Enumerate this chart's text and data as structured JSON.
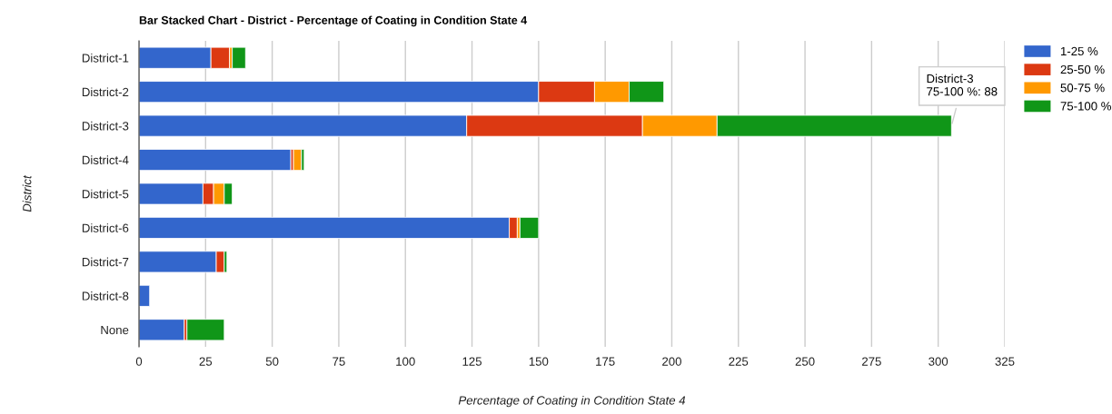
{
  "chart_data": {
    "type": "bar",
    "orientation": "horizontal",
    "stacked": true,
    "title": "Bar Stacked Chart - District - Percentage of Coating in Condition State 4",
    "xlabel": "Percentage of Coating in Condition State 4",
    "ylabel": "District",
    "categories": [
      "District-1",
      "District-2",
      "District-3",
      "District-4",
      "District-5",
      "District-6",
      "District-7",
      "District-8",
      "None"
    ],
    "series": [
      {
        "name": "1-25 %",
        "color": "#3366cc",
        "values": [
          27,
          150,
          123,
          57,
          24,
          139,
          29,
          4,
          17
        ]
      },
      {
        "name": "25-50 %",
        "color": "#dc3912",
        "values": [
          7,
          21,
          66,
          1,
          4,
          3,
          3,
          0,
          1
        ]
      },
      {
        "name": "50-75 %",
        "color": "#ff9900",
        "values": [
          1,
          13,
          28,
          3,
          4,
          1,
          0,
          0,
          0
        ]
      },
      {
        "name": "75-100 %",
        "color": "#109618",
        "values": [
          5,
          13,
          88,
          1,
          3,
          7,
          1,
          0,
          14
        ]
      }
    ],
    "xlim": [
      0,
      325
    ],
    "xticks": [
      0,
      25,
      50,
      75,
      100,
      125,
      150,
      175,
      200,
      225,
      250,
      275,
      300,
      325
    ],
    "grid": "x",
    "legend": "top right",
    "annotations": [
      {
        "text": "District-3\n75-100 %: 88",
        "x": 305,
        "y": "District-3"
      }
    ]
  }
}
